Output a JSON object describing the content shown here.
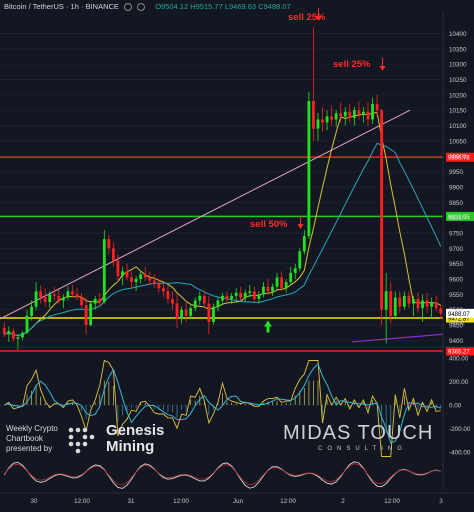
{
  "header": {
    "symbol": "Bitcoin / TetherUS · 1h · BINANCE",
    "ohlc": "O9504.12  H9515.77  L9469.63  C9488.07"
  },
  "chart_data": {
    "type": "candlestick",
    "x_ticks": [
      "30",
      "12:00",
      "31",
      "12:00",
      "Jun",
      "12:00",
      "2",
      "12:00",
      "3"
    ],
    "y_ticks": [
      9400,
      9450,
      9500,
      9550,
      9600,
      9650,
      9700,
      9750,
      9800,
      9850,
      9900,
      9950,
      10000,
      10050,
      10100,
      10150,
      10200,
      10250,
      10300,
      10350,
      10400
    ],
    "ylim": [
      9385,
      10470
    ],
    "horizontal_levels": [
      {
        "label": "9996.78",
        "value": 9996.78,
        "color": "#ff1a1a"
      },
      {
        "label": "9803.95",
        "value": 9803.95,
        "color": "#22cc22"
      },
      {
        "label": "9472.87",
        "value": 9472.87,
        "color": "#f5e400"
      },
      {
        "label": "9365.27",
        "value": 9365.27,
        "color": "#ff1a1a"
      }
    ],
    "last_price": {
      "label": "9488.07",
      "value": 9488.07
    },
    "countdown": "48:52",
    "annotations": [
      {
        "text": "sell 25%",
        "near": "10390"
      },
      {
        "text": "sell 25%",
        "near": "10210"
      },
      {
        "text": "sell 50%",
        "near": "9740"
      }
    ],
    "candles": [
      [
        9440,
        9460,
        9410,
        9420
      ],
      [
        9420,
        9445,
        9395,
        9430
      ],
      [
        9430,
        9440,
        9395,
        9405
      ],
      [
        9405,
        9420,
        9370,
        9410
      ],
      [
        9410,
        9430,
        9400,
        9425
      ],
      [
        9425,
        9500,
        9420,
        9480
      ],
      [
        9480,
        9530,
        9465,
        9510
      ],
      [
        9510,
        9590,
        9500,
        9560
      ],
      [
        9560,
        9580,
        9520,
        9540
      ],
      [
        9540,
        9570,
        9510,
        9525
      ],
      [
        9525,
        9560,
        9505,
        9550
      ],
      [
        9550,
        9575,
        9530,
        9545
      ],
      [
        9545,
        9565,
        9520,
        9530
      ],
      [
        9530,
        9550,
        9505,
        9540
      ],
      [
        9540,
        9575,
        9530,
        9560
      ],
      [
        9560,
        9580,
        9540,
        9550
      ],
      [
        9550,
        9570,
        9530,
        9540
      ],
      [
        9540,
        9555,
        9505,
        9515
      ],
      [
        9515,
        9540,
        9420,
        9450
      ],
      [
        9450,
        9530,
        9445,
        9520
      ],
      [
        9520,
        9545,
        9500,
        9535
      ],
      [
        9535,
        9555,
        9510,
        9525
      ],
      [
        9525,
        9760,
        9520,
        9730
      ],
      [
        9730,
        9745,
        9680,
        9700
      ],
      [
        9700,
        9720,
        9640,
        9660
      ],
      [
        9660,
        9680,
        9590,
        9610
      ],
      [
        9610,
        9640,
        9580,
        9625
      ],
      [
        9625,
        9650,
        9595,
        9605
      ],
      [
        9605,
        9625,
        9570,
        9590
      ],
      [
        9590,
        9610,
        9560,
        9600
      ],
      [
        9600,
        9625,
        9585,
        9615
      ],
      [
        9615,
        9640,
        9595,
        9605
      ],
      [
        9605,
        9625,
        9580,
        9595
      ],
      [
        9595,
        9615,
        9570,
        9585
      ],
      [
        9585,
        9600,
        9555,
        9570
      ],
      [
        9570,
        9590,
        9540,
        9560
      ],
      [
        9560,
        9580,
        9520,
        9535
      ],
      [
        9535,
        9560,
        9500,
        9520
      ],
      [
        9520,
        9550,
        9440,
        9470
      ],
      [
        9470,
        9510,
        9455,
        9500
      ],
      [
        9500,
        9530,
        9460,
        9480
      ],
      [
        9480,
        9515,
        9470,
        9505
      ],
      [
        9505,
        9540,
        9495,
        9530
      ],
      [
        9530,
        9560,
        9515,
        9545
      ],
      [
        9545,
        9560,
        9505,
        9520
      ],
      [
        9520,
        9545,
        9420,
        9460
      ],
      [
        9460,
        9520,
        9450,
        9510
      ],
      [
        9510,
        9540,
        9495,
        9530
      ],
      [
        9530,
        9555,
        9515,
        9545
      ],
      [
        9545,
        9560,
        9525,
        9535
      ],
      [
        9535,
        9555,
        9520,
        9545
      ],
      [
        9545,
        9570,
        9530,
        9555
      ],
      [
        9555,
        9575,
        9530,
        9540
      ],
      [
        9540,
        9565,
        9525,
        9555
      ],
      [
        9555,
        9580,
        9540,
        9560
      ],
      [
        9560,
        9575,
        9525,
        9535
      ],
      [
        9535,
        9560,
        9520,
        9550
      ],
      [
        9550,
        9590,
        9540,
        9575
      ],
      [
        9575,
        9600,
        9550,
        9560
      ],
      [
        9560,
        9585,
        9545,
        9575
      ],
      [
        9575,
        9620,
        9565,
        9605
      ],
      [
        9605,
        9625,
        9560,
        9570
      ],
      [
        9570,
        9600,
        9555,
        9590
      ],
      [
        9590,
        9640,
        9580,
        9620
      ],
      [
        9620,
        9650,
        9600,
        9635
      ],
      [
        9635,
        9700,
        9625,
        9690
      ],
      [
        9690,
        9760,
        9680,
        9740
      ],
      [
        9740,
        10210,
        9730,
        10180
      ],
      [
        10180,
        10420,
        10050,
        10090
      ],
      [
        10090,
        10140,
        10050,
        10120
      ],
      [
        10120,
        10160,
        10080,
        10110
      ],
      [
        10110,
        10150,
        10085,
        10130
      ],
      [
        10130,
        10165,
        10100,
        10120
      ],
      [
        10120,
        10150,
        10095,
        10140
      ],
      [
        10140,
        10175,
        10110,
        10130
      ],
      [
        10130,
        10160,
        10100,
        10145
      ],
      [
        10145,
        10170,
        10110,
        10125
      ],
      [
        10125,
        10160,
        10100,
        10150
      ],
      [
        10150,
        10180,
        10120,
        10135
      ],
      [
        10135,
        10160,
        10110,
        10145
      ],
      [
        10145,
        10175,
        10100,
        10120
      ],
      [
        10120,
        10190,
        10105,
        10170
      ],
      [
        10170,
        10200,
        10130,
        10150
      ],
      [
        10150,
        10155,
        9450,
        9500
      ],
      [
        9500,
        9620,
        9390,
        9560
      ],
      [
        9560,
        9590,
        9455,
        9480
      ],
      [
        9480,
        9560,
        9470,
        9540
      ],
      [
        9540,
        9560,
        9490,
        9510
      ],
      [
        9510,
        9560,
        9500,
        9545
      ],
      [
        9545,
        9560,
        9505,
        9520
      ],
      [
        9520,
        9545,
        9480,
        9535
      ],
      [
        9535,
        9555,
        9490,
        9505
      ],
      [
        9505,
        9550,
        9460,
        9530
      ],
      [
        9530,
        9555,
        9490,
        9510
      ],
      [
        9510,
        9540,
        9470,
        9525
      ],
      [
        9525,
        9545,
        9495,
        9505
      ],
      [
        9504,
        9516,
        9470,
        9488
      ]
    ],
    "indicators": {
      "osc_y_ticks": [
        400,
        200,
        0,
        -200,
        -400
      ],
      "osc_ylim": [
        -470,
        470
      ]
    },
    "branding": {
      "left_lines": [
        "Weekly Crypto",
        "Chartbook",
        "presented by"
      ],
      "sponsor": [
        "Genesis",
        "Mining"
      ],
      "logo_main": "MIDAS TOUCH",
      "logo_sub": "CONSULTING"
    },
    "colors": {
      "up": "#22e022",
      "down": "#ff2020",
      "background": "#131722",
      "ma_fast": "#d6c232",
      "ma_slow": "#2aa6b8",
      "trendline": "#e5a0c8"
    }
  }
}
